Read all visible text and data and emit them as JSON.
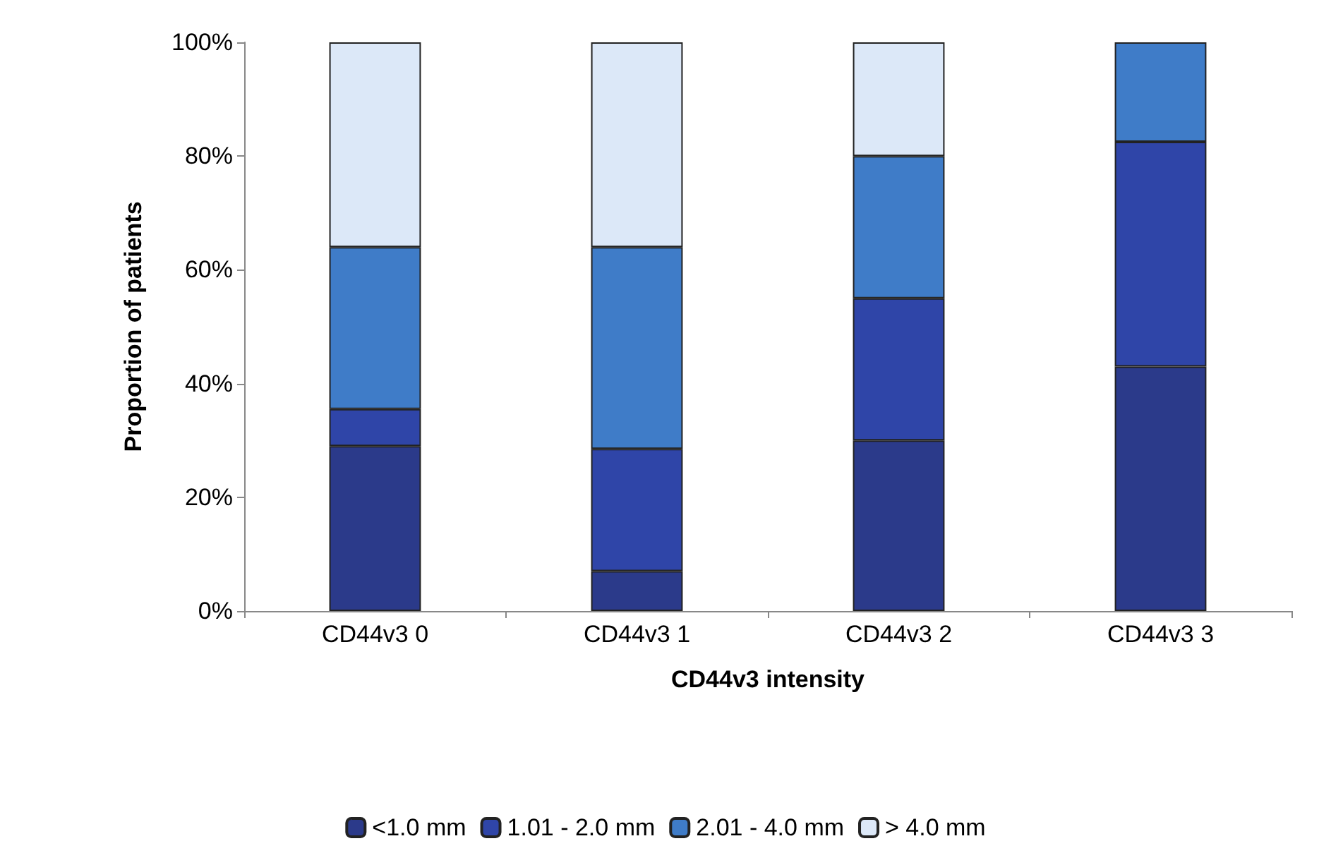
{
  "chart_data": {
    "type": "bar",
    "stacked": true,
    "xlabel": "CD44v3 intensity",
    "ylabel": "Proportion of patients",
    "categories": [
      "CD44v3 0",
      "CD44v3 1",
      "CD44v3 2",
      "CD44v3 3"
    ],
    "series": [
      {
        "name": "<1.0 mm",
        "color": "#2b3a8a",
        "values": [
          29,
          7,
          30,
          43
        ]
      },
      {
        "name": "1.01 - 2.0 mm",
        "color": "#2f45a8",
        "values": [
          6.5,
          21.5,
          25,
          39.5
        ]
      },
      {
        "name": "2.01 - 4.0 mm",
        "color": "#3f7cc8",
        "values": [
          28.5,
          35.5,
          25,
          17.5
        ]
      },
      {
        "name": "> 4.0 mm",
        "color": "#dce8f8",
        "values": [
          36,
          36,
          20,
          null
        ]
      }
    ],
    "ylim": [
      0,
      100
    ],
    "yticks": [
      {
        "value": 0,
        "label": "0%"
      },
      {
        "value": 20,
        "label": "20%"
      },
      {
        "value": 40,
        "label": "40%"
      },
      {
        "value": 60,
        "label": "60%"
      },
      {
        "value": 80,
        "label": "80%"
      },
      {
        "value": 100,
        "label": "100%"
      }
    ],
    "grid": false,
    "legend": "bottom"
  }
}
